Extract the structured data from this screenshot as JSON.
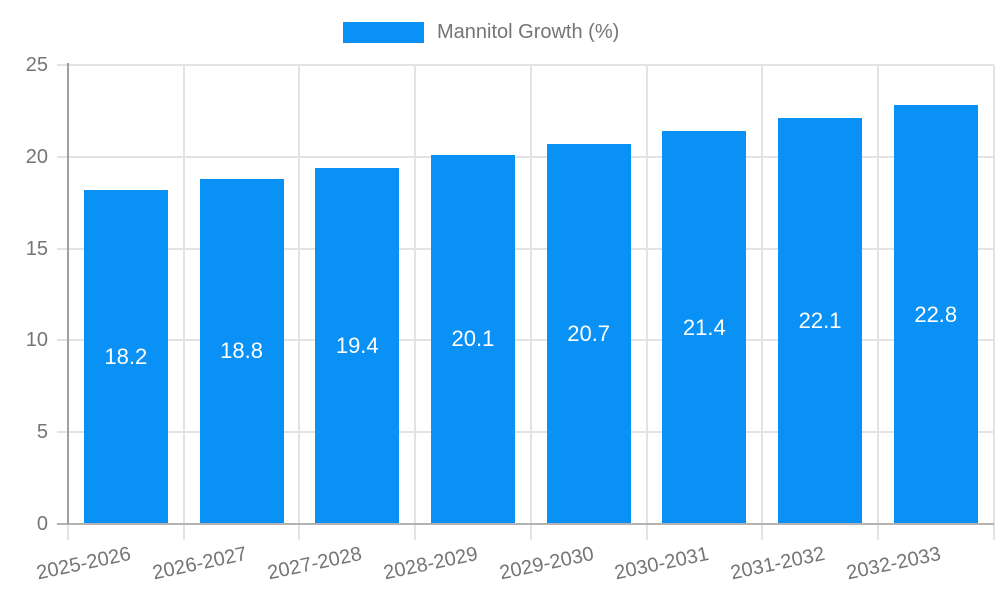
{
  "legend": {
    "label": "Mannitol Growth (%)"
  },
  "chart_data": {
    "type": "bar",
    "title": "",
    "xlabel": "",
    "ylabel": "",
    "categories": [
      "2025-2026",
      "2026-2027",
      "2027-2028",
      "2028-2029",
      "2029-2030",
      "2030-2031",
      "2031-2032",
      "2032-2033"
    ],
    "series": [
      {
        "name": "Mannitol Growth (%)",
        "color": "#0a91f5",
        "values": [
          18.2,
          18.8,
          19.4,
          20.1,
          20.7,
          21.4,
          22.1,
          22.8
        ]
      }
    ],
    "value_labels": [
      "18.2",
      "18.8",
      "19.4",
      "20.1",
      "20.7",
      "21.4",
      "22.1",
      "22.8"
    ],
    "ylim": [
      0,
      25
    ],
    "yticks": [
      "0",
      "5",
      "10",
      "15",
      "20",
      "25"
    ],
    "grid": true,
    "legend_position": "top-center",
    "value_label_position": "inside-center"
  },
  "colors": {
    "bar": "#0a91f5",
    "grid_line": "#e3e3e3",
    "axis_line": "#a0a0a0",
    "baseline": "#b3b3b3",
    "tick_text": "#757575",
    "value_text": "#ffffff",
    "background": "#ffffff"
  }
}
